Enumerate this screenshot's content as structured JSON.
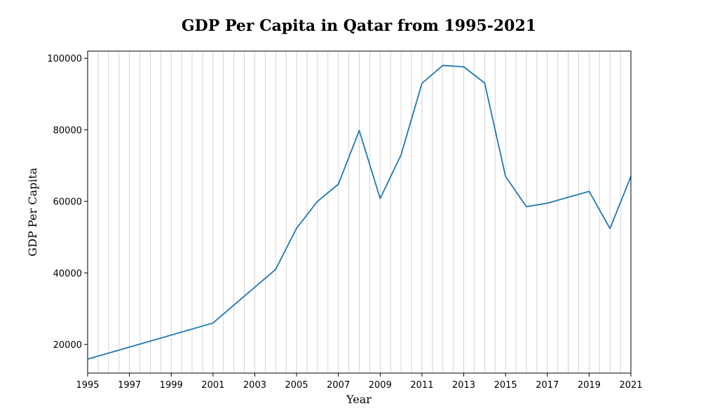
{
  "chart_data": {
    "type": "line",
    "title": "GDP Per Capita in Qatar from 1995-2021",
    "xlabel": "Year",
    "ylabel": "GDP Per Capita",
    "xlim": [
      1995,
      2021
    ],
    "ylim": [
      12000,
      102000
    ],
    "x_ticks": [
      "1995",
      "1997",
      "1999",
      "2001",
      "2003",
      "2005",
      "2007",
      "2009",
      "2011",
      "2013",
      "2015",
      "2017",
      "2019",
      "2021"
    ],
    "y_ticks": [
      "20000",
      "40000",
      "60000",
      "80000",
      "100000"
    ],
    "grid": "vertical gridlines every quarter year",
    "line_color": "#1f77b4",
    "series": [
      {
        "x": [
          1995,
          2001,
          2004,
          2005,
          2006,
          2007,
          2008,
          2009,
          2010,
          2011,
          2012,
          2013,
          2014,
          2015,
          2016,
          2017,
          2019,
          2020,
          2021
        ],
        "values": [
          15900,
          26000,
          41000,
          52500,
          60000,
          64800,
          79800,
          60800,
          73000,
          93000,
          98000,
          97600,
          93100,
          67000,
          58500,
          59500,
          62800,
          52400,
          67000
        ]
      }
    ]
  }
}
